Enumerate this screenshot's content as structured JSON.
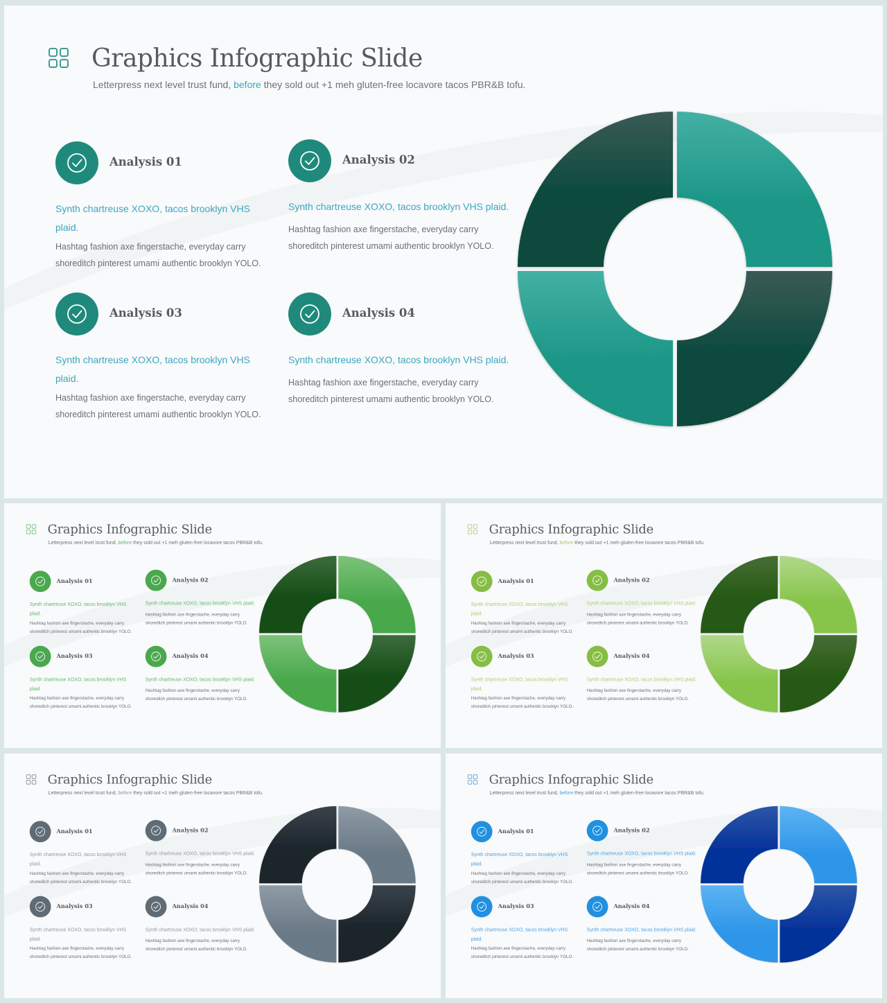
{
  "slide": {
    "title": "Graphics Infographic Slide",
    "subtitle_pre": "Letterpress next level trust fund, ",
    "subtitle_highlight": "before",
    "subtitle_post": " they sold out +1 meh gluten-free locavore tacos PBR&B tofu.",
    "items": [
      {
        "heading": "Analysis 01",
        "lead": "Synth chartreuse XOXO, tacos brooklyn VHS plaid.",
        "text": "Hashtag fashion axe fingerstache, everyday carry shoreditch  pinterest umami authentic brooklyn  YOLO."
      },
      {
        "heading": "Analysis 02",
        "lead": "Synth chartreuse XOXO, tacos brooklyn VHS plaid.",
        "text": "Hashtag fashion axe fingerstache, everyday carry shoreditch  pinterest umami authentic brooklyn  YOLO."
      },
      {
        "heading": "Analysis 03",
        "lead": "Synth chartreuse XOXO, tacos brooklyn VHS plaid.",
        "text": "Hashtag fashion axe fingerstache, everyday carry shoreditch  pinterest umami authentic brooklyn  YOLO."
      },
      {
        "heading": "Analysis 04",
        "lead": "Synth chartreuse XOXO, tacos brooklyn VHS plaid.",
        "text": "Hashtag fashion axe fingerstache, everyday carry shoreditch  pinterest umami authentic brooklyn  YOLO."
      }
    ]
  },
  "variants": [
    {
      "name": "teal",
      "icon": "#3e9c93",
      "dark": [
        "#3a5a55",
        "#0b4a3e"
      ],
      "light": [
        "#44b0a4",
        "#1a9686"
      ],
      "circle": "#1f8a7c",
      "lead_color": "#3aa6c0",
      "highlight": "#3aa6c0"
    },
    {
      "name": "green",
      "icon": "#7fc48c",
      "dark": [
        "#3c6b3c",
        "#144d16"
      ],
      "light": [
        "#7cc27a",
        "#48a84a"
      ],
      "circle": "#4aa84e",
      "lead_color": "#5fb86a",
      "highlight": "#5fb86a"
    },
    {
      "name": "lime",
      "icon": "#b6d28e",
      "dark": [
        "#456e35",
        "#255912"
      ],
      "light": [
        "#b0d888",
        "#86c54a"
      ],
      "circle": "#86bd44",
      "lead_color": "#a8cf6e",
      "highlight": "#a8cf6e"
    },
    {
      "name": "slate",
      "icon": "#8a96a0",
      "dark": [
        "#3a434c",
        "#1c252c"
      ],
      "light": [
        "#8f9ba6",
        "#6a7a86"
      ],
      "circle": "#5f6c76",
      "lead_color": "#8e98a0",
      "highlight": "#8e98a0"
    },
    {
      "name": "blue",
      "icon": "#6fa8d8",
      "dark": [
        "#2d57a8",
        "#06339a"
      ],
      "light": [
        "#5cb4f3",
        "#2f96e8"
      ],
      "circle": "#2190e0",
      "lead_color": "#4aa3e6",
      "highlight": "#4aa3e6"
    }
  ]
}
